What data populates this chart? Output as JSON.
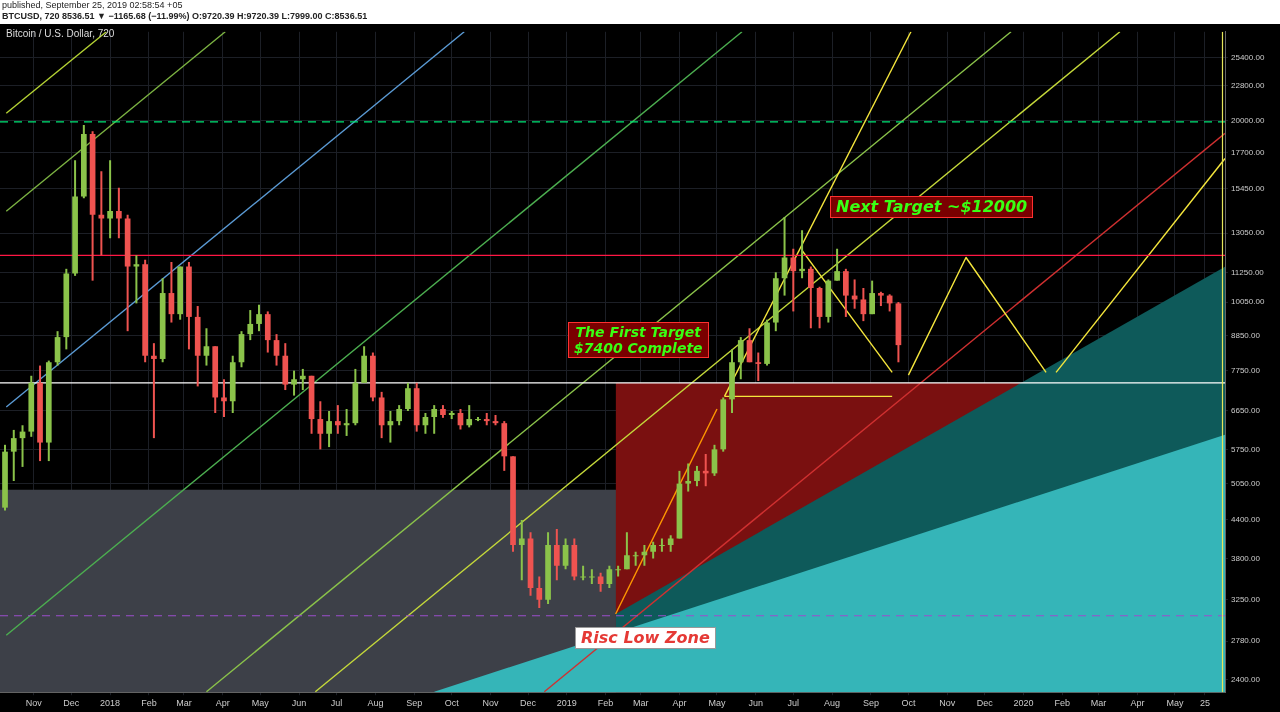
{
  "chart_data": {
    "type": "candlestick",
    "title": "Bitcoin / U.S. Dollar, 720",
    "subtitle": "published, September 25, 2019 02:58:54 +05",
    "annotations": [
      "BTCUSD, 720 8536.51 ▼ −1165.68 (−11.99%) O:9720.39 H:9720.39 L:7999.00 C:8536.51",
      "Next Target ~$12000",
      "The First Target\n$7400 Complete",
      "Risc Low Zone"
    ],
    "x": [
      "2017-10-09",
      "2017-10-16",
      "2017-10-23",
      "2017-10-30",
      "2017-11-06",
      "2017-11-13",
      "2017-11-20",
      "2017-11-27",
      "2017-12-04",
      "2017-12-11",
      "2017-12-18",
      "2017-12-25",
      "2018-01-01",
      "2018-01-08",
      "2018-01-15",
      "2018-01-22",
      "2018-01-29",
      "2018-02-05",
      "2018-02-12",
      "2018-02-19",
      "2018-02-26",
      "2018-03-05",
      "2018-03-12",
      "2018-03-19",
      "2018-03-26",
      "2018-04-02",
      "2018-04-09",
      "2018-04-16",
      "2018-04-23",
      "2018-04-30",
      "2018-05-07",
      "2018-05-14",
      "2018-05-21",
      "2018-05-28",
      "2018-06-04",
      "2018-06-11",
      "2018-06-18",
      "2018-06-25",
      "2018-07-02",
      "2018-07-09",
      "2018-07-16",
      "2018-07-23",
      "2018-07-30",
      "2018-08-06",
      "2018-08-13",
      "2018-08-20",
      "2018-08-27",
      "2018-09-03",
      "2018-09-10",
      "2018-09-17",
      "2018-09-24",
      "2018-10-01",
      "2018-10-08",
      "2018-10-15",
      "2018-10-22",
      "2018-10-29",
      "2018-11-05",
      "2018-11-12",
      "2018-11-19",
      "2018-11-26",
      "2018-12-03",
      "2018-12-10",
      "2018-12-17",
      "2018-12-24",
      "2018-12-31",
      "2019-01-07",
      "2019-01-14",
      "2019-01-21",
      "2019-01-28",
      "2019-02-04",
      "2019-02-11",
      "2019-02-18",
      "2019-02-25",
      "2019-03-04",
      "2019-03-11",
      "2019-03-18",
      "2019-03-25",
      "2019-04-01",
      "2019-04-08",
      "2019-04-15",
      "2019-04-22",
      "2019-04-29",
      "2019-05-06",
      "2019-05-13",
      "2019-05-20",
      "2019-05-27",
      "2019-06-03",
      "2019-06-10",
      "2019-06-17",
      "2019-06-24",
      "2019-07-01",
      "2019-07-08",
      "2019-07-15",
      "2019-07-22",
      "2019-07-29",
      "2019-08-05",
      "2019-08-12",
      "2019-08-19",
      "2019-08-26",
      "2019-09-02",
      "2019-09-09",
      "2019-09-16",
      "2019-09-23"
    ],
    "ohlc": [
      [
        4610,
        5850,
        4560,
        5700
      ],
      [
        5700,
        6190,
        5100,
        6000
      ],
      [
        6000,
        6300,
        5380,
        6150
      ],
      [
        6150,
        7600,
        6030,
        7400
      ],
      [
        7400,
        7900,
        5500,
        5900
      ],
      [
        5900,
        8050,
        5500,
        8000
      ],
      [
        8000,
        9000,
        7900,
        8800
      ],
      [
        8800,
        11400,
        8400,
        11200
      ],
      [
        11200,
        17200,
        11100,
        15000
      ],
      [
        15000,
        19666,
        14900,
        19000
      ],
      [
        19000,
        19200,
        10900,
        14000
      ],
      [
        14000,
        16500,
        12000,
        13800
      ],
      [
        13800,
        17200,
        12800,
        14200
      ],
      [
        14200,
        15500,
        12800,
        13800
      ],
      [
        13800,
        14000,
        9000,
        11500
      ],
      [
        11500,
        12000,
        10000,
        11600
      ],
      [
        11600,
        11800,
        8000,
        8200
      ],
      [
        8200,
        8600,
        6000,
        8100
      ],
      [
        8100,
        11000,
        8000,
        10400
      ],
      [
        10400,
        11700,
        9300,
        9600
      ],
      [
        9600,
        11500,
        9400,
        11500
      ],
      [
        11500,
        11700,
        8400,
        9500
      ],
      [
        9500,
        9900,
        7300,
        8200
      ],
      [
        8200,
        9100,
        7900,
        8500
      ],
      [
        8500,
        8500,
        6600,
        7000
      ],
      [
        7000,
        7500,
        6500,
        6900
      ],
      [
        6900,
        8200,
        6600,
        8000
      ],
      [
        8000,
        9000,
        7850,
        8900
      ],
      [
        8900,
        9750,
        8700,
        9250
      ],
      [
        9250,
        9950,
        9000,
        9600
      ],
      [
        9600,
        9700,
        8300,
        8700
      ],
      [
        8700,
        8900,
        7900,
        8200
      ],
      [
        8200,
        8600,
        7200,
        7350
      ],
      [
        7350,
        7750,
        7050,
        7500
      ],
      [
        7500,
        7800,
        7200,
        7600
      ],
      [
        7600,
        7600,
        6100,
        6450
      ],
      [
        6450,
        6900,
        5750,
        6100
      ],
      [
        6100,
        6650,
        5800,
        6400
      ],
      [
        6400,
        6800,
        6100,
        6300
      ],
      [
        6300,
        6700,
        6050,
        6350
      ],
      [
        6350,
        7800,
        6300,
        7400
      ],
      [
        7400,
        8500,
        7400,
        8200
      ],
      [
        8200,
        8300,
        6900,
        7000
      ],
      [
        7000,
        7150,
        6000,
        6300
      ],
      [
        6300,
        6650,
        5900,
        6400
      ],
      [
        6400,
        6800,
        6300,
        6700
      ],
      [
        6700,
        7400,
        6650,
        7250
      ],
      [
        7250,
        7400,
        6150,
        6300
      ],
      [
        6300,
        6600,
        6100,
        6500
      ],
      [
        6500,
        6800,
        6100,
        6700
      ],
      [
        6700,
        6800,
        6480,
        6550
      ],
      [
        6550,
        6650,
        6450,
        6600
      ],
      [
        6600,
        6700,
        6200,
        6300
      ],
      [
        6300,
        6800,
        6250,
        6450
      ],
      [
        6450,
        6500,
        6400,
        6450
      ],
      [
        6450,
        6600,
        6300,
        6400
      ],
      [
        6400,
        6550,
        6300,
        6350
      ],
      [
        6350,
        6400,
        5300,
        5600
      ],
      [
        5600,
        5600,
        3900,
        4000
      ],
      [
        4000,
        4400,
        3500,
        4100
      ],
      [
        4100,
        4200,
        3300,
        3400
      ],
      [
        3400,
        3550,
        3150,
        3250
      ],
      [
        3250,
        4200,
        3200,
        4000
      ],
      [
        4000,
        4250,
        3500,
        3700
      ],
      [
        3700,
        4100,
        3650,
        4000
      ],
      [
        4000,
        4100,
        3500,
        3550
      ],
      [
        3550,
        3700,
        3500,
        3550
      ],
      [
        3550,
        3650,
        3450,
        3550
      ],
      [
        3550,
        3600,
        3350,
        3450
      ],
      [
        3450,
        3700,
        3400,
        3650
      ],
      [
        3650,
        3700,
        3550,
        3650
      ],
      [
        3650,
        4200,
        3650,
        3850
      ],
      [
        3850,
        3900,
        3700,
        3850
      ],
      [
        3850,
        4000,
        3700,
        3900
      ],
      [
        3900,
        4050,
        3800,
        4000
      ],
      [
        4000,
        4100,
        3900,
        4000
      ],
      [
        4000,
        4150,
        3900,
        4100
      ],
      [
        4100,
        5300,
        4100,
        5050
      ],
      [
        5050,
        5450,
        4900,
        5100
      ],
      [
        5100,
        5400,
        5000,
        5300
      ],
      [
        5300,
        5650,
        5000,
        5250
      ],
      [
        5250,
        5850,
        5200,
        5750
      ],
      [
        5750,
        7000,
        5700,
        6950
      ],
      [
        6950,
        8400,
        6600,
        8000
      ],
      [
        8000,
        8800,
        7500,
        8700
      ],
      [
        8700,
        9100,
        8000,
        8000
      ],
      [
        8000,
        8300,
        7450,
        7950
      ],
      [
        7950,
        9400,
        7900,
        9300
      ],
      [
        9300,
        11250,
        9000,
        11000
      ],
      [
        11000,
        13880,
        10300,
        11900
      ],
      [
        11900,
        12300,
        9700,
        11300
      ],
      [
        11300,
        13200,
        11000,
        11400
      ],
      [
        11400,
        11500,
        9100,
        10600
      ],
      [
        10600,
        10650,
        9100,
        9500
      ],
      [
        9500,
        10950,
        9300,
        10900
      ],
      [
        10900,
        12300,
        10900,
        11300
      ],
      [
        11300,
        11400,
        9500,
        10300
      ],
      [
        10300,
        10950,
        9800,
        10150
      ],
      [
        10150,
        10600,
        9350,
        9600
      ],
      [
        9600,
        10900,
        9600,
        10400
      ],
      [
        10400,
        10450,
        9900,
        10300
      ],
      [
        10300,
        10350,
        9700,
        10000
      ],
      [
        10000,
        10050,
        7999,
        8536.51
      ]
    ],
    "colors": [
      "#8bc34a",
      "#8bc34a",
      "#8bc34a",
      "#8bc34a",
      "#ef5350",
      "#8bc34a",
      "#8bc34a",
      "#8bc34a",
      "#8bc34a",
      "#8bc34a",
      "#ef5350",
      "#ef5350",
      "#8bc34a",
      "#ef5350",
      "#ef5350",
      "#8bc34a",
      "#ef5350",
      "#ef5350",
      "#8bc34a",
      "#ef5350",
      "#8bc34a",
      "#ef5350",
      "#ef5350",
      "#8bc34a",
      "#ef5350",
      "#ef5350",
      "#8bc34a",
      "#8bc34a",
      "#8bc34a",
      "#8bc34a",
      "#ef5350",
      "#ef5350",
      "#ef5350",
      "#8bc34a",
      "#8bc34a",
      "#ef5350",
      "#ef5350",
      "#8bc34a",
      "#ef5350",
      "#8bc34a",
      "#8bc34a",
      "#8bc34a",
      "#ef5350",
      "#ef5350",
      "#8bc34a",
      "#8bc34a",
      "#8bc34a",
      "#ef5350",
      "#8bc34a",
      "#8bc34a",
      "#ef5350",
      "#8bc34a",
      "#ef5350",
      "#8bc34a",
      "#8bc34a",
      "#ef5350",
      "#ef5350",
      "#ef5350",
      "#ef5350",
      "#8bc34a",
      "#ef5350",
      "#ef5350",
      "#8bc34a",
      "#ef5350",
      "#8bc34a",
      "#ef5350",
      "#8bc34a",
      "#8bc34a",
      "#ef5350",
      "#8bc34a",
      "#8bc34a",
      "#8bc34a",
      "#8bc34a",
      "#8bc34a",
      "#8bc34a",
      "#8bc34a",
      "#8bc34a",
      "#8bc34a",
      "#8bc34a",
      "#8bc34a",
      "#ef5350",
      "#8bc34a",
      "#8bc34a",
      "#8bc34a",
      "#8bc34a",
      "#ef5350",
      "#ef5350",
      "#8bc34a",
      "#8bc34a",
      "#8bc34a",
      "#ef5350",
      "#8bc34a",
      "#ef5350",
      "#ef5350",
      "#8bc34a",
      "#8bc34a",
      "#ef5350",
      "#ef5350",
      "#ef5350",
      "#8bc34a",
      "#ef5350",
      "#ef5350",
      "#ef5350"
    ],
    "series": [
      {
        "type": "area",
        "color": "#7a1010",
        "x": [
          "2019-02-09",
          "2019-12-30"
        ],
        "values": [
          7397,
          7397
        ]
      },
      {
        "type": "area",
        "color": "#0e5a5a",
        "x": [
          "2019-02-09",
          "2020-06-10"
        ],
        "values": [
          3081,
          11488
        ]
      },
      {
        "type": "area",
        "color": "#35b5b8",
        "x": [
          "2018-09-17",
          "2020-06-10"
        ],
        "values": [
          2294,
          6077
        ]
      },
      {
        "type": "line",
        "color": "#b5d334",
        "x": [
          "2017-10-10",
          "2017-12-29"
        ],
        "values": [
          20560,
          28000
        ]
      },
      {
        "type": "line",
        "color": "#7cb342",
        "x": [
          "2017-10-10",
          "2018-04-03"
        ],
        "values": [
          14180,
          28000
        ]
      },
      {
        "type": "line",
        "color": "#5b9bd5",
        "x": [
          "2017-10-10",
          "2018-10-11"
        ],
        "values": [
          6750,
          28000
        ]
      },
      {
        "type": "line",
        "color": "#4caf50",
        "x": [
          "2017-10-10",
          "2019-05-21"
        ],
        "values": [
          2842,
          28000
        ]
      },
      {
        "type": "line",
        "color": "#8bc34a",
        "x": [
          "2018-03-19",
          "2019-12-22"
        ],
        "values": [
          2294,
          28000
        ]
      },
      {
        "type": "line",
        "color": "#c5d93a",
        "x": [
          "2018-06-14",
          "2020-03-18"
        ],
        "values": [
          2294,
          28000
        ]
      },
      {
        "type": "line",
        "color": "#d03030",
        "x": [
          "2018-12-14",
          "2020-06-10"
        ],
        "values": [
          2294,
          19060
        ]
      },
      {
        "type": "line",
        "color": "#ff9800",
        "x": [
          "2019-02-09",
          "2019-05-01"
        ],
        "values": [
          3081,
          6700
        ]
      },
      {
        "type": "line",
        "color": "#f5e63c",
        "x": [
          "2019-05-07",
          "2019-10-03"
        ],
        "values": [
          7030,
          28000
        ]
      },
      {
        "type": "line",
        "color": "#f5e63c",
        "x": [
          "2019-05-07",
          "2019-09-18"
        ],
        "values": [
          7030,
          7030
        ]
      },
      {
        "type": "line",
        "color": "#f5e63c",
        "x": [
          "2019-07-08",
          "2019-09-18"
        ],
        "values": [
          12220,
          7700
        ]
      },
      {
        "type": "line",
        "color": "#f5e63c",
        "x": [
          "2019-10-01",
          "2019-11-16",
          "2020-01-19"
        ],
        "values": [
          7620,
          11900,
          7700
        ]
      },
      {
        "type": "line",
        "color": "#f5e63c",
        "x": [
          "2020-01-27",
          "2020-06-10"
        ],
        "values": [
          7700,
          17320
        ]
      }
    ],
    "ref_lines": [
      {
        "axis": "y",
        "value": 19900,
        "color": "#00e676",
        "line_style": "dashed"
      },
      {
        "axis": "y",
        "value": 12000,
        "color": "#ff1744",
        "line_style": "solid"
      },
      {
        "axis": "y",
        "value": 7397,
        "color": "#ffffff",
        "line_style": "solid"
      },
      {
        "axis": "y",
        "value": 3060,
        "color": "#9c4dcc",
        "line_style": "dashed"
      },
      {
        "axis": "x",
        "value": "2020-06-08",
        "color": "#e6e65a",
        "line_style": "solid"
      }
    ],
    "bands": [
      {
        "axis": "y",
        "from": 2290,
        "to": 4935,
        "color": "#3d4048"
      }
    ],
    "xlim": [
      "2017-10-05",
      "2020-06-10"
    ],
    "xticks": [
      {
        "value": "2017-11-01",
        "label": "Nov"
      },
      {
        "value": "2017-12-01",
        "label": "Dec"
      },
      {
        "value": "2018-01-01",
        "label": "2018"
      },
      {
        "value": "2018-02-01",
        "label": "Feb"
      },
      {
        "value": "2018-03-01",
        "label": "Mar"
      },
      {
        "value": "2018-04-01",
        "label": "Apr"
      },
      {
        "value": "2018-05-01",
        "label": "May"
      },
      {
        "value": "2018-06-01",
        "label": "Jun"
      },
      {
        "value": "2018-07-01",
        "label": "Jul"
      },
      {
        "value": "2018-08-01",
        "label": "Aug"
      },
      {
        "value": "2018-09-01",
        "label": "Sep"
      },
      {
        "value": "2018-10-01",
        "label": "Oct"
      },
      {
        "value": "2018-11-01",
        "label": "Nov"
      },
      {
        "value": "2018-12-01",
        "label": "Dec"
      },
      {
        "value": "2019-01-01",
        "label": "2019"
      },
      {
        "value": "2019-02-01",
        "label": "Feb"
      },
      {
        "value": "2019-03-01",
        "label": "Mar"
      },
      {
        "value": "2019-04-01",
        "label": "Apr"
      },
      {
        "value": "2019-05-01",
        "label": "May"
      },
      {
        "value": "2019-06-01",
        "label": "Jun"
      },
      {
        "value": "2019-07-01",
        "label": "Jul"
      },
      {
        "value": "2019-08-01",
        "label": "Aug"
      },
      {
        "value": "2019-09-01",
        "label": "Sep"
      },
      {
        "value": "2019-10-01",
        "label": "Oct"
      },
      {
        "value": "2019-11-01",
        "label": "Nov"
      },
      {
        "value": "2019-12-01",
        "label": "Dec"
      },
      {
        "value": "2020-01-01",
        "label": "2020"
      },
      {
        "value": "2020-02-01",
        "label": "Feb"
      },
      {
        "value": "2020-03-01",
        "label": "Mar"
      },
      {
        "value": "2020-04-01",
        "label": "Apr"
      },
      {
        "value": "2020-05-01",
        "label": "May"
      },
      {
        "value": "2020-05-25",
        "label": "25"
      }
    ],
    "ylim": [
      2290,
      28000
    ],
    "yticks": [
      {
        "value": 2400,
        "label": "2400.00"
      },
      {
        "value": 2780,
        "label": "2780.00"
      },
      {
        "value": 3250,
        "label": "3250.00"
      },
      {
        "value": 3800,
        "label": "3800.00"
      },
      {
        "value": 4400,
        "label": "4400.00"
      },
      {
        "value": 5050,
        "label": "5050.00"
      },
      {
        "value": 5750,
        "label": "5750.00"
      },
      {
        "value": 6650,
        "label": "6650.00"
      },
      {
        "value": 7750,
        "label": "7750.00"
      },
      {
        "value": 8850,
        "label": "8850.00"
      },
      {
        "value": 10050,
        "label": "10050.00"
      },
      {
        "value": 11250,
        "label": "11250.00"
      },
      {
        "value": 13050,
        "label": "13050.00"
      },
      {
        "value": 15450,
        "label": "15450.00"
      },
      {
        "value": 17700,
        "label": "17700.00"
      },
      {
        "value": 20000,
        "label": "20000.00"
      },
      {
        "value": 22800,
        "label": "22800.00"
      },
      {
        "value": 25400,
        "label": "25400.00"
      }
    ],
    "log": "y",
    "grid": true,
    "legend": false,
    "marker": "none"
  }
}
